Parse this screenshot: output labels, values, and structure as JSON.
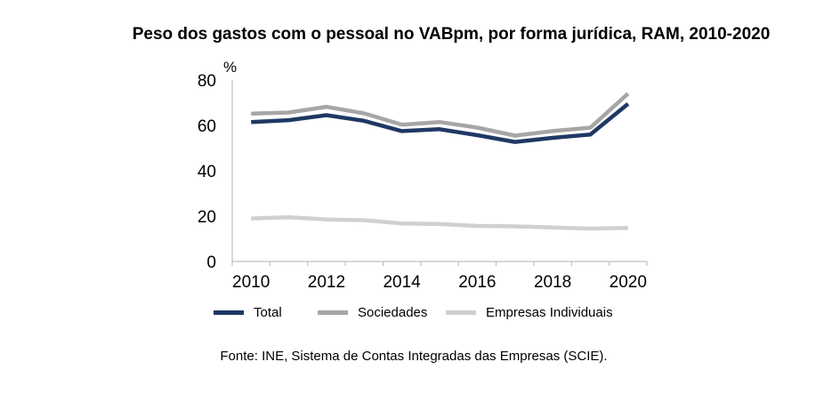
{
  "chart_data": {
    "type": "line",
    "title": "Peso dos gastos com o pessoal no VABpm, por forma jurídica, RAM, 2010-2020",
    "ylabel": "%",
    "xlabel": "",
    "x": [
      2010,
      2011,
      2012,
      2013,
      2014,
      2015,
      2016,
      2017,
      2018,
      2019,
      2020
    ],
    "x_tick_labels": [
      "2010",
      "2012",
      "2014",
      "2016",
      "2018",
      "2020"
    ],
    "y_tick_labels": [
      "0",
      "20",
      "40",
      "60",
      "80"
    ],
    "ylim": [
      0,
      80
    ],
    "grid": false,
    "legend_position": "bottom",
    "series": [
      {
        "name": "Total",
        "color": "#1f3864",
        "values": [
          61.5,
          62.3,
          64.5,
          62.0,
          57.5,
          58.3,
          55.7,
          52.7,
          54.5,
          56.0,
          69.5
        ]
      },
      {
        "name": "Sociedades",
        "color": "#a6a6a6",
        "values": [
          65.2,
          65.7,
          68.2,
          65.3,
          60.3,
          61.5,
          59.0,
          55.5,
          57.5,
          59.0,
          74.0
        ]
      },
      {
        "name": "Empresas Individuais",
        "color": "#d0d0d0",
        "values": [
          19.0,
          19.5,
          18.5,
          18.2,
          16.8,
          16.5,
          15.7,
          15.5,
          15.0,
          14.5,
          14.8
        ]
      }
    ],
    "source": "Fonte: INE, Sistema de Contas Integradas das Empresas (SCIE)."
  }
}
